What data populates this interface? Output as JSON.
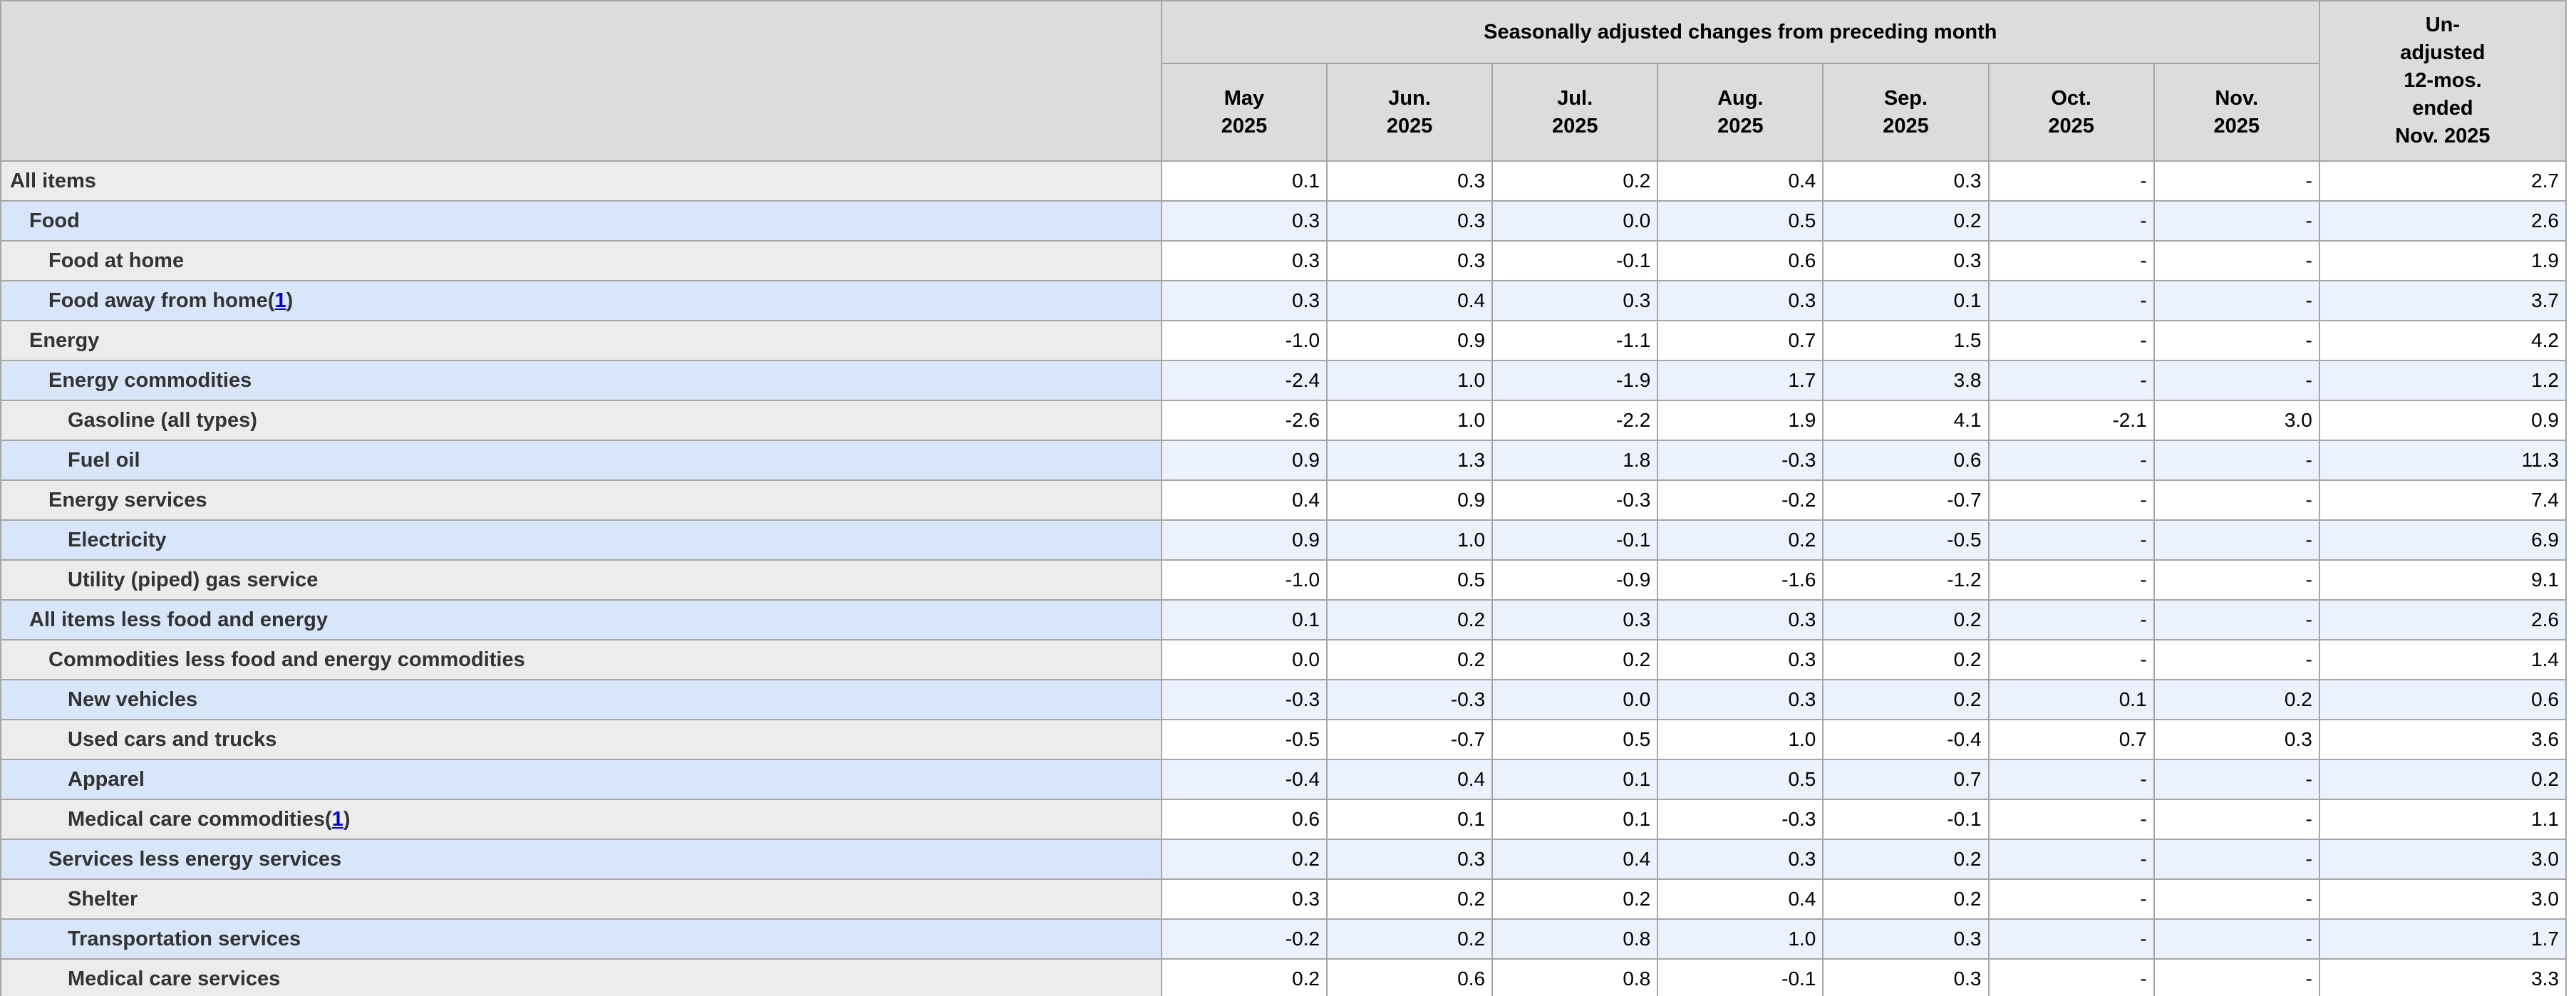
{
  "chart_data": {
    "type": "table",
    "group_header": "Seasonally adjusted changes from preceding month",
    "months": [
      {
        "month": "May",
        "year": "2025"
      },
      {
        "month": "Jun.",
        "year": "2025"
      },
      {
        "month": "Jul.",
        "year": "2025"
      },
      {
        "month": "Aug.",
        "year": "2025"
      },
      {
        "month": "Sep.",
        "year": "2025"
      },
      {
        "month": "Oct.",
        "year": "2025"
      },
      {
        "month": "Nov.",
        "year": "2025"
      }
    ],
    "unadjusted_header_lines": [
      "Un-",
      "adjusted",
      "12-mos.",
      "ended",
      "Nov. 2025"
    ],
    "rows": [
      {
        "label": "All items",
        "indent": 0,
        "footnote": null,
        "values": [
          "0.1",
          "0.3",
          "0.2",
          "0.4",
          "0.3",
          "-",
          "-",
          "2.7"
        ]
      },
      {
        "label": "Food",
        "indent": 1,
        "footnote": null,
        "values": [
          "0.3",
          "0.3",
          "0.0",
          "0.5",
          "0.2",
          "-",
          "-",
          "2.6"
        ]
      },
      {
        "label": "Food at home",
        "indent": 2,
        "footnote": null,
        "values": [
          "0.3",
          "0.3",
          "-0.1",
          "0.6",
          "0.3",
          "-",
          "-",
          "1.9"
        ]
      },
      {
        "label": "Food away from home",
        "indent": 2,
        "footnote": "1",
        "values": [
          "0.3",
          "0.4",
          "0.3",
          "0.3",
          "0.1",
          "-",
          "-",
          "3.7"
        ]
      },
      {
        "label": "Energy",
        "indent": 1,
        "footnote": null,
        "values": [
          "-1.0",
          "0.9",
          "-1.1",
          "0.7",
          "1.5",
          "-",
          "-",
          "4.2"
        ]
      },
      {
        "label": "Energy commodities",
        "indent": 2,
        "footnote": null,
        "values": [
          "-2.4",
          "1.0",
          "-1.9",
          "1.7",
          "3.8",
          "-",
          "-",
          "1.2"
        ]
      },
      {
        "label": "Gasoline (all types)",
        "indent": 3,
        "footnote": null,
        "values": [
          "-2.6",
          "1.0",
          "-2.2",
          "1.9",
          "4.1",
          "-2.1",
          "3.0",
          "0.9"
        ]
      },
      {
        "label": "Fuel oil",
        "indent": 3,
        "footnote": null,
        "values": [
          "0.9",
          "1.3",
          "1.8",
          "-0.3",
          "0.6",
          "-",
          "-",
          "11.3"
        ]
      },
      {
        "label": "Energy services",
        "indent": 2,
        "footnote": null,
        "values": [
          "0.4",
          "0.9",
          "-0.3",
          "-0.2",
          "-0.7",
          "-",
          "-",
          "7.4"
        ]
      },
      {
        "label": "Electricity",
        "indent": 3,
        "footnote": null,
        "values": [
          "0.9",
          "1.0",
          "-0.1",
          "0.2",
          "-0.5",
          "-",
          "-",
          "6.9"
        ]
      },
      {
        "label": "Utility (piped) gas service",
        "indent": 3,
        "footnote": null,
        "values": [
          "-1.0",
          "0.5",
          "-0.9",
          "-1.6",
          "-1.2",
          "-",
          "-",
          "9.1"
        ]
      },
      {
        "label": "All items less food and energy",
        "indent": 1,
        "footnote": null,
        "values": [
          "0.1",
          "0.2",
          "0.3",
          "0.3",
          "0.2",
          "-",
          "-",
          "2.6"
        ]
      },
      {
        "label": "Commodities less food and energy commodities",
        "indent": 2,
        "footnote": null,
        "values": [
          "0.0",
          "0.2",
          "0.2",
          "0.3",
          "0.2",
          "-",
          "-",
          "1.4"
        ]
      },
      {
        "label": "New vehicles",
        "indent": 3,
        "footnote": null,
        "values": [
          "-0.3",
          "-0.3",
          "0.0",
          "0.3",
          "0.2",
          "0.1",
          "0.2",
          "0.6"
        ]
      },
      {
        "label": "Used cars and trucks",
        "indent": 3,
        "footnote": null,
        "values": [
          "-0.5",
          "-0.7",
          "0.5",
          "1.0",
          "-0.4",
          "0.7",
          "0.3",
          "3.6"
        ]
      },
      {
        "label": "Apparel",
        "indent": 3,
        "footnote": null,
        "values": [
          "-0.4",
          "0.4",
          "0.1",
          "0.5",
          "0.7",
          "-",
          "-",
          "0.2"
        ]
      },
      {
        "label": "Medical care commodities",
        "indent": 3,
        "footnote": "1",
        "values": [
          "0.6",
          "0.1",
          "0.1",
          "-0.3",
          "-0.1",
          "-",
          "-",
          "1.1"
        ]
      },
      {
        "label": "Services less energy services",
        "indent": 2,
        "footnote": null,
        "values": [
          "0.2",
          "0.3",
          "0.4",
          "0.3",
          "0.2",
          "-",
          "-",
          "3.0"
        ]
      },
      {
        "label": "Shelter",
        "indent": 3,
        "footnote": null,
        "values": [
          "0.3",
          "0.2",
          "0.2",
          "0.4",
          "0.2",
          "-",
          "-",
          "3.0"
        ]
      },
      {
        "label": "Transportation services",
        "indent": 3,
        "footnote": null,
        "values": [
          "-0.2",
          "0.2",
          "0.8",
          "1.0",
          "0.3",
          "-",
          "-",
          "1.7"
        ]
      },
      {
        "label": "Medical care services",
        "indent": 3,
        "footnote": null,
        "values": [
          "0.2",
          "0.6",
          "0.8",
          "-0.1",
          "0.3",
          "-",
          "-",
          "3.3"
        ]
      }
    ]
  },
  "colors": {
    "header_bg": "#dcdcdc",
    "label_gray": "#ececec",
    "label_blue": "#d9e6fa",
    "cell_white": "#ffffff",
    "cell_blue": "#ecf2fd",
    "border": "#a6a6a6",
    "label_text": "#333333",
    "value_text": "#000000",
    "link": "#0000cc"
  }
}
